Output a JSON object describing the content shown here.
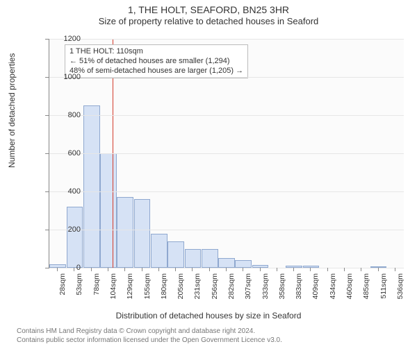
{
  "title_main": "1, THE HOLT, SEAFORD, BN25 3HR",
  "title_sub": "Size of property relative to detached houses in Seaford",
  "ylabel": "Number of detached properties",
  "xlabel": "Distribution of detached houses by size in Seaford",
  "footer_line1": "Contains HM Land Registry data © Crown copyright and database right 2024.",
  "footer_line2": "Contains public sector information licensed under the Open Government Licence v3.0.",
  "chart": {
    "type": "histogram",
    "ylim": [
      0,
      1200
    ],
    "ytick_step": 200,
    "bar_fill": "#d6e2f5",
    "bar_stroke": "#8fa8cf",
    "grid_color": "#e6e6e6",
    "background_color": "#fbfbfb",
    "axis_color": "#888888",
    "marker_color": "#d43a2a",
    "marker_value": 110,
    "bar_width": 0.98,
    "label_fontsize": 12,
    "tick_fontsize": 11,
    "xticks": [
      "28sqm",
      "53sqm",
      "78sqm",
      "104sqm",
      "129sqm",
      "155sqm",
      "180sqm",
      "205sqm",
      "231sqm",
      "256sqm",
      "282sqm",
      "307sqm",
      "333sqm",
      "358sqm",
      "383sqm",
      "409sqm",
      "434sqm",
      "460sqm",
      "485sqm",
      "511sqm",
      "536sqm"
    ],
    "values": [
      20,
      320,
      850,
      600,
      370,
      360,
      180,
      140,
      100,
      100,
      50,
      40,
      15,
      0,
      10,
      10,
      0,
      0,
      0,
      5,
      0
    ]
  },
  "annotation": {
    "line1": "1 THE HOLT: 110sqm",
    "line2": "← 51% of detached houses are smaller (1,294)",
    "line3": "48% of semi-detached houses are larger (1,205) →",
    "box_border": "#bbbbbb",
    "box_bg": "#ffffff",
    "fontsize": 11
  }
}
